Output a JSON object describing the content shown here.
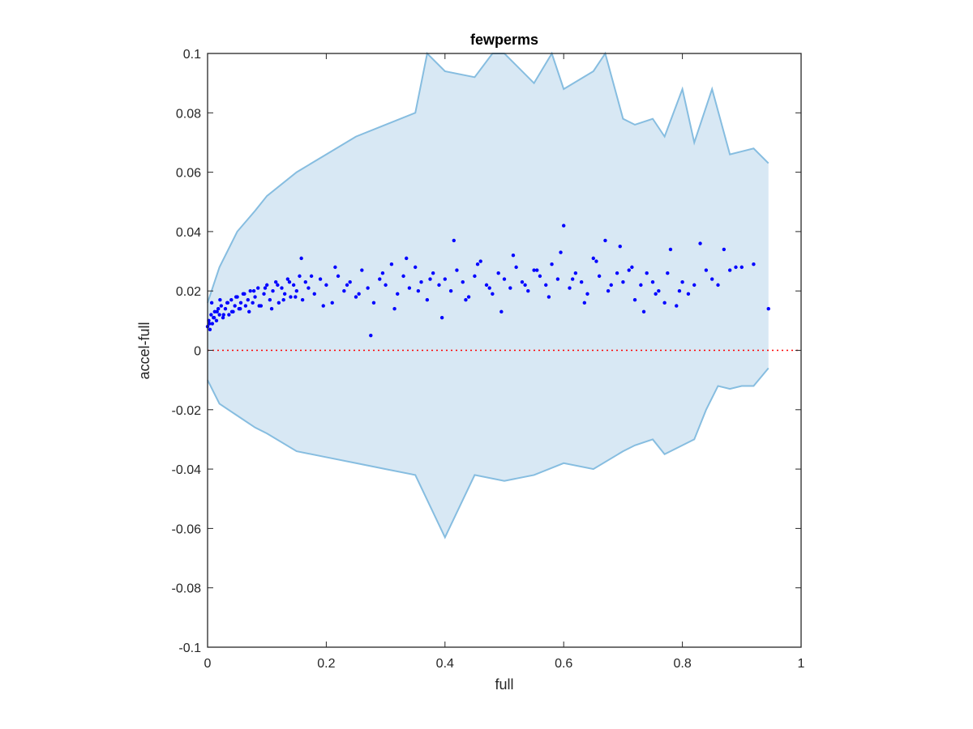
{
  "chart_data": {
    "type": "scatter",
    "title": "fewperms",
    "xlabel": "full",
    "ylabel": "accel-full",
    "xlim": [
      0,
      1
    ],
    "ylim": [
      -0.1,
      0.1
    ],
    "x_ticks": [
      "0",
      "0.2",
      "0.4",
      "0.6",
      "0.8",
      "1"
    ],
    "y_ticks": [
      "-0.1",
      "-0.08",
      "-0.06",
      "-0.04",
      "-0.02",
      "0",
      "0.02",
      "0.04",
      "0.06",
      "0.08",
      "0.1"
    ],
    "grid": false,
    "reference_line": {
      "y": 0,
      "style": "dotted",
      "color": "#ff0000"
    },
    "colors": {
      "points": "#0000ff",
      "band_fill": "#d8e8f4",
      "band_edge": "#86bde0",
      "axis": "#262626"
    },
    "upper_band": {
      "x": [
        0.0,
        0.02,
        0.05,
        0.08,
        0.1,
        0.15,
        0.2,
        0.25,
        0.3,
        0.35,
        0.37,
        0.4,
        0.45,
        0.48,
        0.5,
        0.55,
        0.58,
        0.6,
        0.65,
        0.67,
        0.7,
        0.72,
        0.75,
        0.77,
        0.8,
        0.82,
        0.85,
        0.88,
        0.9,
        0.92,
        0.945
      ],
      "y": [
        0.016,
        0.028,
        0.04,
        0.047,
        0.052,
        0.06,
        0.066,
        0.072,
        0.076,
        0.08,
        0.1,
        0.094,
        0.092,
        0.1,
        0.1,
        0.09,
        0.1,
        0.088,
        0.094,
        0.1,
        0.078,
        0.076,
        0.078,
        0.072,
        0.088,
        0.07,
        0.088,
        0.066,
        0.067,
        0.068,
        0.063
      ]
    },
    "lower_band": {
      "x": [
        0.0,
        0.02,
        0.05,
        0.08,
        0.1,
        0.15,
        0.2,
        0.25,
        0.3,
        0.35,
        0.4,
        0.45,
        0.5,
        0.55,
        0.6,
        0.65,
        0.7,
        0.72,
        0.75,
        0.77,
        0.8,
        0.82,
        0.84,
        0.86,
        0.88,
        0.9,
        0.92,
        0.945
      ],
      "y": [
        -0.01,
        -0.018,
        -0.022,
        -0.026,
        -0.028,
        -0.034,
        -0.036,
        -0.038,
        -0.04,
        -0.042,
        -0.063,
        -0.042,
        -0.044,
        -0.042,
        -0.038,
        -0.04,
        -0.034,
        -0.032,
        -0.03,
        -0.035,
        -0.032,
        -0.03,
        -0.02,
        -0.012,
        -0.013,
        -0.012,
        -0.012,
        -0.006
      ]
    },
    "points": {
      "x": [
        0.0,
        0.002,
        0.004,
        0.006,
        0.008,
        0.01,
        0.012,
        0.015,
        0.018,
        0.02,
        0.023,
        0.026,
        0.03,
        0.033,
        0.036,
        0.04,
        0.043,
        0.046,
        0.05,
        0.053,
        0.056,
        0.06,
        0.064,
        0.068,
        0.072,
        0.076,
        0.08,
        0.085,
        0.09,
        0.095,
        0.1,
        0.105,
        0.11,
        0.115,
        0.12,
        0.125,
        0.13,
        0.135,
        0.14,
        0.145,
        0.15,
        0.155,
        0.16,
        0.165,
        0.17,
        0.18,
        0.19,
        0.2,
        0.21,
        0.22,
        0.23,
        0.24,
        0.25,
        0.26,
        0.27,
        0.28,
        0.29,
        0.3,
        0.31,
        0.32,
        0.33,
        0.34,
        0.35,
        0.36,
        0.37,
        0.38,
        0.39,
        0.4,
        0.41,
        0.42,
        0.43,
        0.44,
        0.45,
        0.46,
        0.47,
        0.48,
        0.49,
        0.5,
        0.51,
        0.52,
        0.53,
        0.54,
        0.55,
        0.56,
        0.57,
        0.58,
        0.59,
        0.6,
        0.61,
        0.62,
        0.63,
        0.64,
        0.65,
        0.66,
        0.67,
        0.68,
        0.69,
        0.7,
        0.71,
        0.72,
        0.73,
        0.74,
        0.75,
        0.76,
        0.77,
        0.78,
        0.79,
        0.8,
        0.81,
        0.82,
        0.83,
        0.84,
        0.85,
        0.86,
        0.87,
        0.88,
        0.89,
        0.9,
        0.92,
        0.945,
        0.003,
        0.007,
        0.011,
        0.016,
        0.021,
        0.027,
        0.034,
        0.041,
        0.048,
        0.055,
        0.062,
        0.07,
        0.078,
        0.087,
        0.097,
        0.108,
        0.118,
        0.128,
        0.138,
        0.148,
        0.158,
        0.175,
        0.195,
        0.215,
        0.235,
        0.255,
        0.275,
        0.295,
        0.315,
        0.335,
        0.355,
        0.375,
        0.395,
        0.415,
        0.435,
        0.455,
        0.475,
        0.495,
        0.515,
        0.535,
        0.555,
        0.575,
        0.595,
        0.615,
        0.635,
        0.655,
        0.675,
        0.695,
        0.715,
        0.735,
        0.755,
        0.775,
        0.795
      ],
      "y": [
        0.008,
        0.01,
        0.007,
        0.012,
        0.009,
        0.011,
        0.013,
        0.01,
        0.014,
        0.012,
        0.015,
        0.011,
        0.014,
        0.016,
        0.012,
        0.017,
        0.013,
        0.015,
        0.018,
        0.014,
        0.016,
        0.019,
        0.015,
        0.017,
        0.02,
        0.016,
        0.018,
        0.021,
        0.015,
        0.019,
        0.022,
        0.017,
        0.02,
        0.023,
        0.016,
        0.021,
        0.019,
        0.024,
        0.018,
        0.022,
        0.02,
        0.025,
        0.017,
        0.023,
        0.021,
        0.019,
        0.024,
        0.022,
        0.016,
        0.025,
        0.02,
        0.023,
        0.018,
        0.027,
        0.021,
        0.016,
        0.024,
        0.022,
        0.029,
        0.019,
        0.025,
        0.021,
        0.028,
        0.023,
        0.017,
        0.026,
        0.022,
        0.024,
        0.02,
        0.027,
        0.023,
        0.018,
        0.025,
        0.03,
        0.022,
        0.019,
        0.026,
        0.024,
        0.021,
        0.028,
        0.023,
        0.02,
        0.027,
        0.025,
        0.022,
        0.029,
        0.024,
        0.042,
        0.021,
        0.026,
        0.023,
        0.019,
        0.031,
        0.025,
        0.037,
        0.022,
        0.026,
        0.023,
        0.027,
        0.017,
        0.022,
        0.026,
        0.023,
        0.02,
        0.016,
        0.034,
        0.015,
        0.023,
        0.019,
        0.022,
        0.036,
        0.027,
        0.024,
        0.022,
        0.034,
        0.027,
        0.028,
        0.028,
        0.029,
        0.014,
        0.009,
        0.016,
        0.011,
        0.013,
        0.017,
        0.012,
        0.016,
        0.013,
        0.018,
        0.014,
        0.019,
        0.013,
        0.02,
        0.015,
        0.021,
        0.014,
        0.022,
        0.017,
        0.023,
        0.018,
        0.031,
        0.025,
        0.015,
        0.028,
        0.022,
        0.019,
        0.005,
        0.026,
        0.014,
        0.031,
        0.02,
        0.024,
        0.011,
        0.037,
        0.017,
        0.029,
        0.021,
        0.013,
        0.032,
        0.022,
        0.027,
        0.018,
        0.033,
        0.024,
        0.016,
        0.03,
        0.02,
        0.035,
        0.028,
        0.013,
        0.019,
        0.026,
        0.02
      ]
    }
  }
}
